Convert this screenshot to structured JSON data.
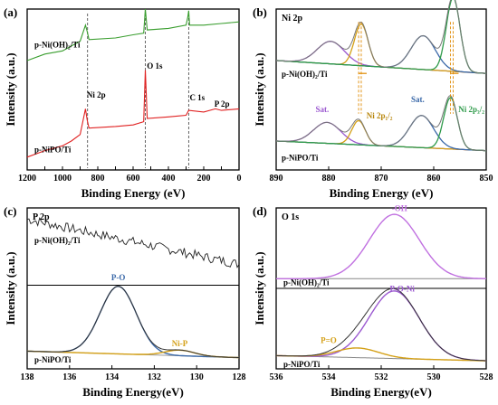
{
  "chart_data": [
    {
      "panel": "(a)",
      "type": "line",
      "xlabel": "Binding Energy (eV)",
      "ylabel": "Intensity (a.u.)",
      "xlim": [
        1200,
        0
      ],
      "xticks": [
        1200,
        1100,
        1000,
        900,
        800,
        700,
        600,
        500,
        400,
        300,
        200,
        100,
        0
      ],
      "xtick_labels": [
        "1200",
        "",
        "1000",
        "",
        "800",
        "",
        "600",
        "",
        "400",
        "",
        "200",
        "",
        "0"
      ],
      "series": [
        {
          "name": "p-Ni(OH)₂/Ti",
          "color": "#3a9e2f",
          "x": [
            1200,
            1100,
            1000,
            950,
            900,
            870,
            860,
            850,
            700,
            600,
            540,
            531,
            520,
            400,
            300,
            290,
            285,
            280,
            200,
            100,
            0
          ],
          "y": [
            0.68,
            0.72,
            0.74,
            0.77,
            0.8,
            0.9,
            0.86,
            0.81,
            0.82,
            0.84,
            0.85,
            1.0,
            0.87,
            0.88,
            0.9,
            0.95,
            0.99,
            0.9,
            0.9,
            0.91,
            0.92
          ]
        },
        {
          "name": "p-NiPO/Ti",
          "color": "#e02020",
          "x": [
            1200,
            1100,
            1000,
            950,
            900,
            870,
            860,
            850,
            700,
            600,
            540,
            531,
            520,
            400,
            300,
            285,
            200,
            134,
            100,
            0
          ],
          "y": [
            0.08,
            0.12,
            0.15,
            0.18,
            0.22,
            0.38,
            0.31,
            0.26,
            0.27,
            0.28,
            0.3,
            0.62,
            0.32,
            0.33,
            0.34,
            0.37,
            0.36,
            0.38,
            0.37,
            0.38
          ]
        }
      ],
      "annotations": [
        "Ni 2p",
        "O 1s",
        "C 1s",
        "P 2p"
      ],
      "reference_lines": [
        858,
        531,
        285
      ]
    },
    {
      "panel": "(b)",
      "type": "line",
      "title": "Ni 2p",
      "xlabel": "Binding Energy (eV)",
      "ylabel": "Intensity (a.u.)",
      "xlim": [
        890,
        850
      ],
      "xticks": [
        890,
        880,
        870,
        860,
        850
      ],
      "series_labels": [
        "p-Ni(OH)₂/Ti",
        "p-NiPO/Ti"
      ],
      "annotations": [
        "Sat.",
        "Ni 2p₁/₂",
        "Sat.",
        "Ni 2p₃/₂"
      ],
      "peaks_top": [
        {
          "center": 879.6,
          "height": 0.14,
          "width": 2.6,
          "color": "#9b59d0"
        },
        {
          "center": 873.8,
          "height": 0.26,
          "width": 1.3,
          "color": "#d4a017"
        },
        {
          "center": 862.0,
          "height": 0.21,
          "width": 2.3,
          "color": "#3a68a8"
        },
        {
          "center": 856.3,
          "height": 0.46,
          "width": 1.3,
          "color": "#2e9a4a"
        }
      ],
      "peaks_bottom": [
        {
          "center": 880.3,
          "height": 0.13,
          "width": 2.6,
          "color": "#9b59d0"
        },
        {
          "center": 874.3,
          "height": 0.15,
          "width": 1.3,
          "color": "#d4a017"
        },
        {
          "center": 862.3,
          "height": 0.2,
          "width": 2.3,
          "color": "#3a68a8"
        },
        {
          "center": 856.8,
          "height": 0.32,
          "width": 1.3,
          "color": "#2e9a4a"
        }
      ]
    },
    {
      "panel": "(c)",
      "type": "line",
      "title": "P 2p",
      "xlabel": "Binding Energy(eV)",
      "ylabel": "Intensity (a.u.)",
      "xlim": [
        138,
        128
      ],
      "xticks": [
        138,
        136,
        134,
        132,
        130,
        128
      ],
      "series_labels": [
        "p-Ni(OH)₂/Ti",
        "p-NiPO/Ti"
      ],
      "annotations": [
        "P-O",
        "Ni-P"
      ],
      "peaks": [
        {
          "name": "P-O",
          "center": 133.7,
          "height": 0.42,
          "width": 0.85,
          "color": "#3a68a8"
        },
        {
          "name": "Ni-P",
          "center": 130.8,
          "height": 0.035,
          "width": 0.7,
          "color": "#d4a017"
        }
      ]
    },
    {
      "panel": "(d)",
      "type": "line",
      "title": "O 1s",
      "xlabel": "Binding Energy(eV)",
      "ylabel": "Intensity (a.u.)",
      "xlim": [
        536,
        528
      ],
      "xticks": [
        536,
        534,
        532,
        530,
        528
      ],
      "series_labels": [
        "p-Ni(OH)₂/Ti",
        "p-NiPO/Ti"
      ],
      "annotations": [
        "-OH",
        "P-O-Ni",
        "P=O"
      ],
      "peaks_top": [
        {
          "name": "-OH",
          "center": 531.5,
          "height": 0.4,
          "width": 0.95,
          "color": "#c070e0"
        }
      ],
      "peaks_bottom": [
        {
          "name": "P-O-Ni",
          "center": 531.5,
          "height": 0.42,
          "width": 0.95,
          "color": "#9b59d0"
        },
        {
          "name": "P=O",
          "center": 532.9,
          "height": 0.06,
          "width": 0.8,
          "color": "#d4a017"
        }
      ]
    }
  ]
}
